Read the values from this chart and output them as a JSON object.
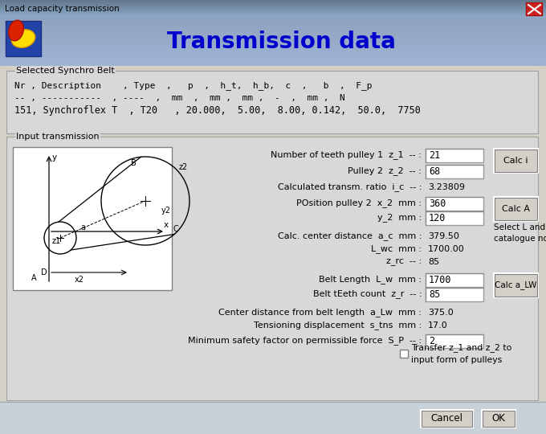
{
  "title_bar": "Load capacity transmission",
  "header_title": "Transmission data",
  "bg_color": "#d4d0c8",
  "title_bar_bg": "#a8c0d8",
  "header_area_bg": "#c0d0e0",
  "group_box_bg": "#d8d8d8",
  "selected_synchro_belt_label": "Selected Synchro Belt",
  "belt_header": "Nr , Description    , Type  ,   p  ,  h_t,  h_b,  c  ,   b  ,  F_p",
  "belt_units": "-- , -----------  , ----  ,  mm  ,  mm ,  mm ,  -  ,  mm ,  N",
  "belt_data": "151, Synchroflex T  , T20   , 20.000,  5.00,  8.00, 0.142,  50.0,  7750",
  "input_transmission_label": "Input transmission",
  "cancel_label": "Cancel",
  "ok_label": "OK"
}
